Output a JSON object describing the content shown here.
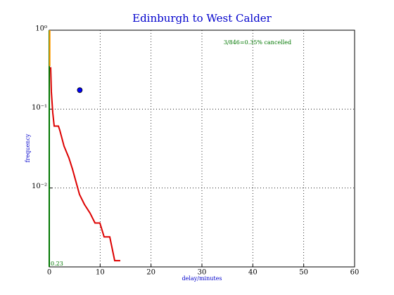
{
  "chart_data": {
    "type": "line",
    "title": "Edinburgh to West Calder",
    "x_label": "delay/minutes",
    "y_label": "frequency",
    "annotations": [
      "3/846=0.35% cancelled",
      "0.23"
    ],
    "xlim": [
      0,
      60
    ],
    "xticks": [
      0,
      10,
      20,
      30,
      40,
      50,
      60
    ],
    "ylim": [
      0.001,
      1
    ],
    "log_y": true,
    "yticks": [
      {
        "value": 1,
        "label": "10⁰"
      },
      {
        "value": 0.1,
        "label": "10⁻¹"
      },
      {
        "value": 0.01,
        "label": "10⁻²"
      }
    ],
    "grid": true,
    "series": [
      {
        "color": "#007700",
        "x": [
          0,
          0
        ],
        "values": [
          1,
          0.001
        ]
      },
      {
        "color": "#ff9900",
        "x": [
          0.1,
          0.1
        ],
        "values": [
          1,
          0.35
        ]
      },
      {
        "color": "#dd0000",
        "x": [
          0.28,
          0.41,
          0.69,
          0.97,
          1.8,
          2.07,
          2.9,
          3.87,
          4.56,
          5.25,
          5.94,
          6.91,
          8.02,
          8.99,
          9.95,
          10.78,
          11.89,
          12.86,
          13.96
        ],
        "values": [
          0.34,
          0.167,
          0.09,
          0.061,
          0.061,
          0.054,
          0.034,
          0.024,
          0.0174,
          0.012,
          0.0083,
          0.0062,
          0.0048,
          0.0036,
          0.0036,
          0.0024,
          0.0024,
          0.0012,
          0.0012
        ]
      },
      {
        "color": "#0000ff",
        "marker": true,
        "x": [
          6
        ],
        "values": [
          0.174
        ]
      }
    ]
  }
}
